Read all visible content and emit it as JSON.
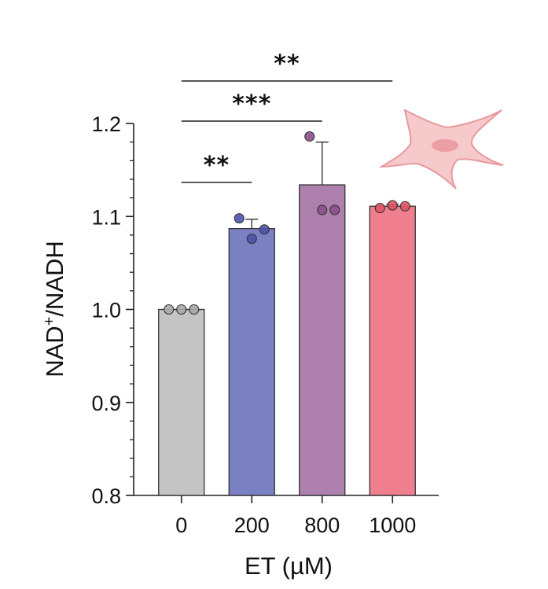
{
  "chart_data": {
    "type": "bar",
    "xlabel": "ET (µM)",
    "ylabel": "NAD⁺/NADH",
    "ylim": [
      0.8,
      1.2
    ],
    "yticks": [
      "0.8",
      "0.9",
      "1.0",
      "1.1",
      "1.2"
    ],
    "categories": [
      "0",
      "200",
      "800",
      "1000"
    ],
    "values": [
      1.0,
      1.087,
      1.134,
      1.111
    ],
    "errors": [
      0.0,
      0.01,
      0.046,
      0.002
    ],
    "points": [
      [
        1.0,
        1.0,
        1.0
      ],
      [
        1.098,
        1.076,
        1.086
      ],
      [
        1.186,
        1.107,
        1.107
      ],
      [
        1.109,
        1.112,
        1.111
      ]
    ],
    "colors": [
      "#c4c4c4",
      "#7b80c2",
      "#ae80ad",
      "#ef7f8e"
    ],
    "point_colors": [
      "#a8a8a8",
      "#4d53a8",
      "#8b4f8a",
      "#e05565"
    ],
    "significance": [
      {
        "from": "0",
        "to": "1000",
        "label": "**"
      },
      {
        "from": "0",
        "to": "800",
        "label": "***"
      },
      {
        "from": "0",
        "to": "200",
        "label": "**"
      }
    ],
    "grid": false,
    "illustration": "fibroblast-cell-icon"
  }
}
